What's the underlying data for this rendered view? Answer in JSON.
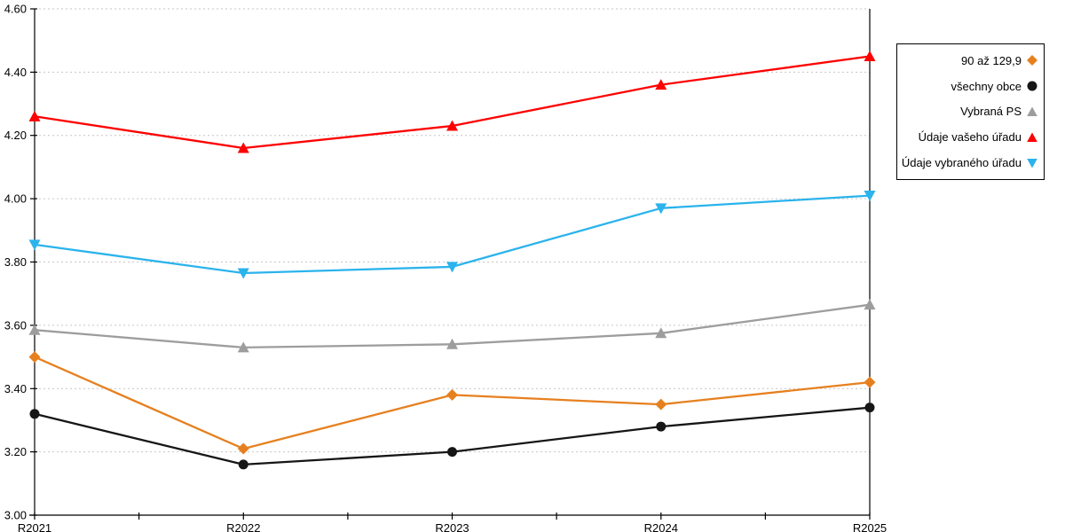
{
  "chart_data": {
    "type": "line",
    "title": "",
    "xlabel": "",
    "ylabel": "",
    "categories": [
      "R2021",
      "R2022",
      "R2023",
      "R2024",
      "R2025"
    ],
    "series": [
      {
        "name": "90 až 129,9",
        "marker": "diamond",
        "color": "#E6801F",
        "values": [
          3.5,
          3.21,
          3.38,
          3.35,
          3.42
        ]
      },
      {
        "name": "všechny obce",
        "marker": "circle",
        "color": "#161616",
        "values": [
          3.32,
          3.16,
          3.2,
          3.28,
          3.34
        ]
      },
      {
        "name": "Vybraná PS",
        "marker": "triangle-up",
        "color": "#9D9D9D",
        "values": [
          3.585,
          3.53,
          3.54,
          3.575,
          3.665
        ]
      },
      {
        "name": "Údaje vašeho úřadu",
        "marker": "triangle-up",
        "color": "#FE0000",
        "values": [
          4.26,
          4.16,
          4.23,
          4.36,
          4.45
        ]
      },
      {
        "name": "Údaje vybraného úřadu",
        "marker": "triangle-down",
        "color": "#2BB3EC",
        "values": [
          3.855,
          3.765,
          3.785,
          3.97,
          4.01
        ]
      }
    ],
    "ylim": [
      3.0,
      4.6
    ],
    "ytick_step": 0.2,
    "ytick_labels": [
      "3.00",
      "3.20",
      "3.40",
      "3.60",
      "3.80",
      "4.00",
      "4.20",
      "4.40",
      "4.60"
    ],
    "grid": "horizontal dashed, color #C6C6C6",
    "axis_color": "#000000",
    "legend_position": "right",
    "legend_entries": [
      "90 až 129,9",
      "všechny obce",
      "Vybraná PS",
      "Údaje vašeho úřadu",
      "Údaje vybraného úřadu"
    ]
  }
}
